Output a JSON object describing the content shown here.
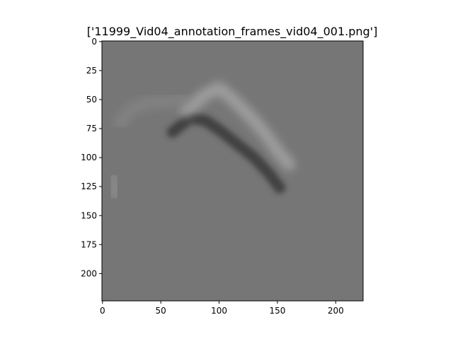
{
  "chart_data": {
    "type": "image",
    "title": "['11999_Vid04_annotation_frames_vid04_001.png']",
    "xlabel": "",
    "ylabel": "",
    "x_ticks": [
      0,
      50,
      100,
      150,
      200
    ],
    "y_ticks": [
      0,
      25,
      50,
      75,
      100,
      125,
      150,
      175,
      200
    ],
    "xlim": [
      -0.5,
      223.5
    ],
    "ylim": [
      223.5,
      -0.5
    ],
    "image_width": 224,
    "image_height": 224,
    "colormap": "gray",
    "grid": false,
    "background_gray": "#767676",
    "features": [
      {
        "name": "dark-arc",
        "points": [
          [
            60,
            78
          ],
          [
            75,
            66
          ],
          [
            88,
            68
          ],
          [
            100,
            76
          ],
          [
            115,
            88
          ],
          [
            130,
            100
          ],
          [
            143,
            114
          ],
          [
            152,
            126
          ]
        ],
        "color": "#3c3c3c",
        "intensity": 0.9
      },
      {
        "name": "light-arc-upper",
        "points": [
          [
            72,
            60
          ],
          [
            88,
            46
          ],
          [
            100,
            40
          ],
          [
            112,
            50
          ],
          [
            128,
            66
          ],
          [
            140,
            80
          ],
          [
            150,
            94
          ],
          [
            160,
            106
          ]
        ],
        "color": "#a6a6a6",
        "intensity": 0.8
      },
      {
        "name": "light-band-left",
        "points": [
          [
            15,
            70
          ],
          [
            25,
            58
          ],
          [
            40,
            52
          ],
          [
            55,
            52
          ],
          [
            70,
            50
          ]
        ],
        "color": "#8e8e8e",
        "intensity": 0.5
      },
      {
        "name": "light-blob-left",
        "points": [
          [
            8,
            118
          ],
          [
            12,
            125
          ],
          [
            10,
            132
          ]
        ],
        "color": "#939393",
        "intensity": 0.6
      }
    ]
  }
}
